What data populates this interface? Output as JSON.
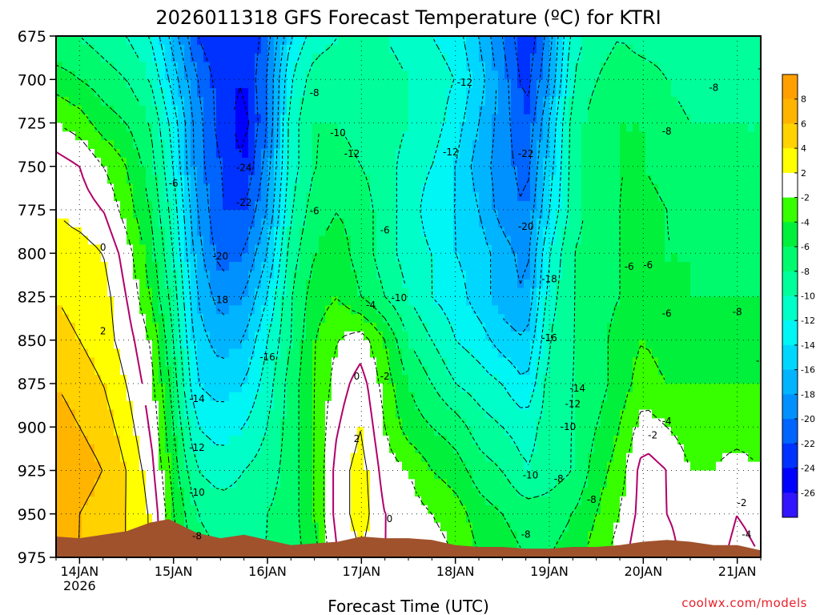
{
  "chart_data": {
    "type": "heatmap",
    "title": "2026011318 GFS Forecast Temperature (ºC) for KTRI",
    "xlabel": "Forecast Time (UTC)",
    "ylabel": "",
    "units": "°C",
    "y_ticks": [
      675,
      700,
      725,
      750,
      775,
      800,
      825,
      850,
      875,
      900,
      925,
      950,
      975
    ],
    "ylim": [
      675,
      975
    ],
    "y_inverted": true,
    "x_ticks": [
      "14JAN",
      "15JAN",
      "16JAN",
      "17JAN",
      "18JAN",
      "19JAN",
      "20JAN",
      "21JAN"
    ],
    "x_tick_sublabel": "2026",
    "xlim_days": [
      13.75,
      21.25
    ],
    "colorbar": {
      "ticks": [
        8,
        6,
        4,
        2,
        -2,
        -4,
        -6,
        -8,
        -10,
        -12,
        -14,
        -16,
        -18,
        -20,
        -22,
        -24,
        -26
      ],
      "bands": [
        {
          "min": 8,
          "max": 10,
          "color": "#ffa000"
        },
        {
          "min": 6,
          "max": 8,
          "color": "#ffb400"
        },
        {
          "min": 4,
          "max": 6,
          "color": "#ffd200"
        },
        {
          "min": 2,
          "max": 4,
          "color": "#ffff00"
        },
        {
          "min": -2,
          "max": 2,
          "color": "#ffffff"
        },
        {
          "min": -4,
          "max": -2,
          "color": "#37ff00"
        },
        {
          "min": -6,
          "max": -4,
          "color": "#00f03c"
        },
        {
          "min": -8,
          "max": -6,
          "color": "#00fa6e"
        },
        {
          "min": -10,
          "max": -8,
          "color": "#00ff9b"
        },
        {
          "min": -12,
          "max": -10,
          "color": "#00ffc8"
        },
        {
          "min": -14,
          "max": -12,
          "color": "#00f5f5"
        },
        {
          "min": -16,
          "max": -14,
          "color": "#00d7ff"
        },
        {
          "min": -18,
          "max": -16,
          "color": "#00b4ff"
        },
        {
          "min": -20,
          "max": -18,
          "color": "#0091ff"
        },
        {
          "min": -22,
          "max": -20,
          "color": "#0064ff"
        },
        {
          "min": -24,
          "max": -22,
          "color": "#0032ff"
        },
        {
          "min": -26,
          "max": -24,
          "color": "#0000ff"
        },
        {
          "min": -28,
          "max": -26,
          "color": "#3214ff"
        }
      ]
    },
    "temperature_grid": {
      "times_days": [
        13.75,
        14.0,
        14.25,
        14.5,
        14.75,
        15.0,
        15.25,
        15.5,
        15.75,
        16.0,
        16.25,
        16.5,
        16.75,
        17.0,
        17.25,
        17.5,
        17.75,
        18.0,
        18.25,
        18.5,
        18.75,
        19.0,
        19.25,
        19.5,
        19.75,
        20.0,
        20.25,
        20.5,
        20.75,
        21.0,
        21.25
      ],
      "levels_hpa": [
        675,
        700,
        725,
        750,
        775,
        800,
        825,
        850,
        875,
        900,
        925,
        950,
        975
      ],
      "values": [
        [
          -8,
          -8,
          -9,
          -10,
          -12,
          -17,
          -22,
          -24,
          -24,
          -21,
          -14,
          -11,
          -10,
          -10,
          -10,
          -11,
          -12,
          -13,
          -16,
          -20,
          -24,
          -19,
          -11,
          -9,
          -8,
          -9,
          -9,
          -10,
          -10,
          -10,
          -10
        ],
        [
          -5,
          -6,
          -7,
          -8,
          -10,
          -15,
          -20,
          -23,
          -24,
          -20,
          -12,
          -9,
          -9,
          -9,
          -9,
          -10,
          -11,
          -12,
          -15,
          -19,
          -23,
          -18,
          -10,
          -8,
          -7,
          -7,
          -8,
          -9,
          -9,
          -9,
          -9
        ],
        [
          -2,
          -3,
          -5,
          -6,
          -8,
          -13,
          -19,
          -23,
          -25,
          -20,
          -11,
          -8,
          -8,
          -9,
          -9,
          -10,
          -11,
          -13,
          -16,
          -19,
          -22,
          -16,
          -9,
          -7,
          -6,
          -6,
          -7,
          -8,
          -8,
          -8,
          -8
        ],
        [
          1,
          0,
          -2,
          -4,
          -7,
          -12,
          -19,
          -22,
          -24,
          -19,
          -11,
          -8,
          -7,
          -8,
          -9,
          -11,
          -12,
          -14,
          -17,
          -19,
          -21,
          -15,
          -9,
          -7,
          -6,
          -6,
          -7,
          -7,
          -8,
          -8,
          -8
        ],
        [
          2,
          1,
          0,
          -3,
          -6,
          -11,
          -18,
          -22,
          -22,
          -18,
          -10,
          -7,
          -6,
          -7,
          -9,
          -11,
          -13,
          -14,
          -16,
          -19,
          -20,
          -14,
          -9,
          -7,
          -6,
          -5,
          -6,
          -7,
          -7,
          -7,
          -8
        ],
        [
          3,
          3,
          2,
          -1,
          -5,
          -10,
          -17,
          -21,
          -20,
          -16,
          -9,
          -6,
          -5,
          -7,
          -9,
          -11,
          -12,
          -14,
          -15,
          -17,
          -19,
          -12,
          -8,
          -7,
          -6,
          -5,
          -6,
          -6,
          -7,
          -7,
          -7
        ],
        [
          4,
          3,
          3,
          0,
          -4,
          -9,
          -16,
          -19,
          -18,
          -14,
          -8,
          -5,
          -4,
          -6,
          -8,
          -10,
          -12,
          -13,
          -15,
          -17,
          -18,
          -11,
          -8,
          -7,
          -6,
          -5,
          -6,
          -6,
          -6,
          -6,
          -6
        ],
        [
          5,
          4,
          3,
          1,
          -2,
          -8,
          -15,
          -17,
          -16,
          -12,
          -8,
          -4,
          -2,
          -1,
          -4,
          -8,
          -10,
          -12,
          -13,
          -15,
          -16,
          -10,
          -8,
          -7,
          -5,
          -4,
          -5,
          -5,
          -5,
          -5,
          -5
        ],
        [
          6,
          5,
          4,
          2,
          -1,
          -7,
          -14,
          -15,
          -14,
          -11,
          -7,
          -4,
          -1,
          1,
          -3,
          -6,
          -8,
          -10,
          -11,
          -12,
          -14,
          -9,
          -8,
          -7,
          -5,
          -3,
          -4,
          -4,
          -4,
          -4,
          -4
        ],
        [
          7,
          6,
          5,
          3,
          0,
          -6,
          -12,
          -13,
          -12,
          -10,
          -7,
          -4,
          0,
          2,
          -2,
          -5,
          -6,
          -7,
          -9,
          -10,
          -11,
          -9,
          -8,
          -6,
          -4,
          -1,
          -2,
          -3,
          -3,
          -3,
          -3
        ],
        [
          8,
          7,
          6,
          4,
          1,
          -5,
          -10,
          -11,
          -10,
          -9,
          -7,
          -4,
          1,
          3,
          -1,
          -2,
          -4,
          -5,
          -7,
          -8,
          -10,
          -9,
          -8,
          -5,
          -3,
          1,
          0,
          -2,
          -2,
          -1,
          -2
        ],
        [
          7,
          6,
          5,
          4,
          2,
          -4,
          -8,
          -9,
          -9,
          -8,
          -7,
          -4,
          1,
          3,
          0,
          -1,
          -2,
          -3,
          -5,
          -6,
          -7,
          -7,
          -6,
          -4,
          -2,
          1,
          0,
          -1,
          -2,
          0,
          -1
        ],
        [
          6,
          6,
          5,
          4,
          2,
          -3,
          -7,
          -8,
          -8,
          -8,
          -7,
          -5,
          0,
          2,
          0,
          -1,
          -1,
          -2,
          -4,
          -5,
          -6,
          -6,
          -5,
          -3,
          -1,
          2,
          1,
          -1,
          -1,
          1,
          0
        ]
      ]
    },
    "contour_labels": [
      "0",
      "2",
      "0",
      "2",
      "0",
      "2",
      "-2",
      "-2",
      "-2",
      "-4",
      "-4",
      "-4",
      "-6",
      "-6",
      "-6",
      "-6",
      "-6",
      "-6",
      "-8",
      "-8",
      "-8",
      "-8",
      "-8",
      "-8",
      "-8",
      "-8",
      "-8",
      "-10",
      "-10",
      "-10",
      "-10",
      "-10",
      "-10",
      "-12",
      "-12",
      "-12",
      "-12",
      "-12",
      "-14",
      "-14",
      "-16",
      "-16",
      "-18",
      "-18",
      "-20",
      "-20",
      "-22",
      "-22",
      "-24"
    ],
    "terrain_color": "#a0522d",
    "grid": true
  },
  "credit": "coolwx.com/models"
}
